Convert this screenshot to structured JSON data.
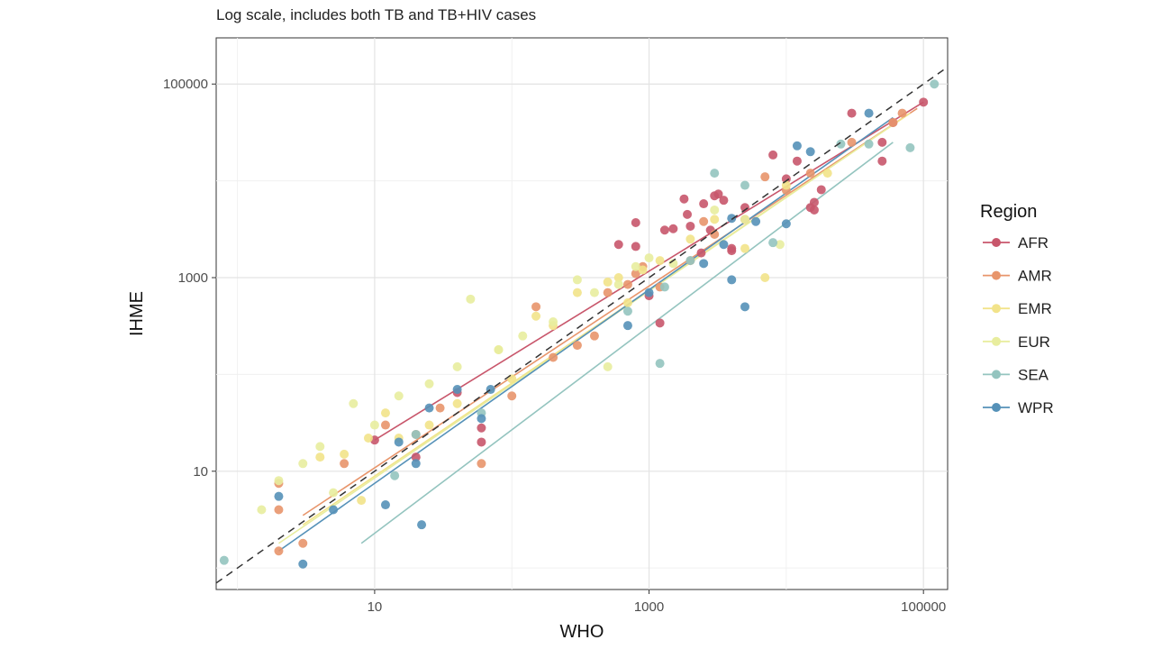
{
  "chart_data": {
    "type": "scatter",
    "subtitle": "Log scale, includes both TB and TB+HIV cases",
    "xlabel": "WHO",
    "ylabel": "IHME",
    "x_scale": "log10",
    "y_scale": "log10",
    "xlim": [
      0.7,
      150000
    ],
    "ylim": [
      0.6,
      300000
    ],
    "x_ticks": [
      10,
      1000,
      100000
    ],
    "x_tick_labels": [
      "10",
      "1000",
      "100000"
    ],
    "y_ticks": [
      10,
      1000,
      100000
    ],
    "y_tick_labels": [
      "10",
      "1000",
      "100000"
    ],
    "grid": true,
    "reference_line": "y = x (dashed)",
    "legend": {
      "title": "Region",
      "placement": "right",
      "entries": [
        "AFR",
        "AMR",
        "EMR",
        "EUR",
        "SEA",
        "WPR"
      ]
    },
    "series": [
      {
        "name": "AFR",
        "color": "#c8566b",
        "fit": [
          [
            10,
            21
          ],
          [
            100000,
            65000
          ]
        ],
        "points": [
          [
            10,
            21
          ],
          [
            20,
            14
          ],
          [
            40,
            65
          ],
          [
            60,
            28
          ],
          [
            60,
            20
          ],
          [
            800,
            2100
          ],
          [
            800,
            3700
          ],
          [
            600,
            2200
          ],
          [
            1000,
            650
          ],
          [
            1200,
            340
          ],
          [
            1300,
            3100
          ],
          [
            1500,
            3200
          ],
          [
            1800,
            6500
          ],
          [
            1900,
            4500
          ],
          [
            2000,
            3400
          ],
          [
            2400,
            1800
          ],
          [
            2500,
            5800
          ],
          [
            2800,
            3100
          ],
          [
            3000,
            7000
          ],
          [
            3200,
            7300
          ],
          [
            3500,
            6300
          ],
          [
            4000,
            2000
          ],
          [
            4000,
            1900
          ],
          [
            5000,
            5300
          ],
          [
            8000,
            18500
          ],
          [
            10000,
            10500
          ],
          [
            12000,
            16000
          ],
          [
            15000,
            5300
          ],
          [
            16000,
            6000
          ],
          [
            16000,
            5000
          ],
          [
            18000,
            8100
          ],
          [
            30000,
            50000
          ],
          [
            50000,
            25000
          ],
          [
            50000,
            16000
          ],
          [
            60000,
            40000
          ],
          [
            100000,
            65000
          ]
        ]
      },
      {
        "name": "AMR",
        "color": "#e8956b",
        "fit": [
          [
            3,
            3.5
          ],
          [
            90000,
            56000
          ]
        ],
        "points": [
          [
            2,
            1.5
          ],
          [
            2,
            7.5
          ],
          [
            2,
            4
          ],
          [
            3,
            1.8
          ],
          [
            6,
            12
          ],
          [
            12,
            30
          ],
          [
            20,
            24
          ],
          [
            30,
            45
          ],
          [
            60,
            12
          ],
          [
            100,
            60
          ],
          [
            150,
            500
          ],
          [
            200,
            150
          ],
          [
            300,
            200
          ],
          [
            400,
            250
          ],
          [
            500,
            700
          ],
          [
            700,
            850
          ],
          [
            800,
            1100
          ],
          [
            900,
            1300
          ],
          [
            1200,
            800
          ],
          [
            2000,
            1500
          ],
          [
            2500,
            3800
          ],
          [
            3000,
            2800
          ],
          [
            5000,
            4000
          ],
          [
            7000,
            11000
          ],
          [
            10000,
            8000
          ],
          [
            15000,
            12000
          ],
          [
            30000,
            25000
          ],
          [
            60000,
            40000
          ],
          [
            70000,
            50000
          ]
        ]
      },
      {
        "name": "EMR",
        "color": "#f2e38a",
        "fit": [
          [
            3,
            2.8
          ],
          [
            80000,
            50000
          ]
        ],
        "points": [
          [
            4,
            14
          ],
          [
            6,
            15
          ],
          [
            8,
            5
          ],
          [
            9,
            22
          ],
          [
            12,
            40
          ],
          [
            15,
            22
          ],
          [
            25,
            30
          ],
          [
            40,
            50
          ],
          [
            80,
            180
          ],
          [
            100,
            90
          ],
          [
            150,
            400
          ],
          [
            200,
            320
          ],
          [
            300,
            700
          ],
          [
            500,
            900
          ],
          [
            600,
            1000
          ],
          [
            700,
            550
          ],
          [
            900,
            1200
          ],
          [
            1200,
            1500
          ],
          [
            2000,
            2500
          ],
          [
            3000,
            4000
          ],
          [
            5000,
            2000
          ],
          [
            7000,
            1000
          ],
          [
            10000,
            9000
          ],
          [
            20000,
            12000
          ]
        ]
      },
      {
        "name": "EUR",
        "color": "#e8ed9e",
        "fit": [
          [
            2,
            1.8
          ],
          [
            60000,
            38000
          ]
        ],
        "points": [
          [
            1.5,
            4
          ],
          [
            2,
            8
          ],
          [
            3,
            12
          ],
          [
            4,
            18
          ],
          [
            5,
            6
          ],
          [
            7,
            50
          ],
          [
            10,
            30
          ],
          [
            15,
            60
          ],
          [
            25,
            80
          ],
          [
            40,
            120
          ],
          [
            50,
            600
          ],
          [
            80,
            180
          ],
          [
            120,
            250
          ],
          [
            200,
            350
          ],
          [
            300,
            950
          ],
          [
            400,
            700
          ],
          [
            500,
            120
          ],
          [
            600,
            850
          ],
          [
            800,
            1300
          ],
          [
            1000,
            1600
          ],
          [
            1500,
            1400
          ],
          [
            3000,
            5000
          ],
          [
            5000,
            4000
          ],
          [
            9000,
            2200
          ]
        ]
      },
      {
        "name": "SEA",
        "color": "#94c4bf",
        "fit": [
          [
            8,
            1.8
          ],
          [
            60000,
            25000
          ]
        ],
        "points": [
          [
            0.8,
            1.2
          ],
          [
            14,
            9
          ],
          [
            20,
            24
          ],
          [
            60,
            40
          ],
          [
            700,
            450
          ],
          [
            1200,
            130
          ],
          [
            1300,
            800
          ],
          [
            2000,
            1500
          ],
          [
            3000,
            12000
          ],
          [
            5000,
            9000
          ],
          [
            8000,
            2300
          ],
          [
            25000,
            24000
          ],
          [
            40000,
            24000
          ],
          [
            80000,
            22000
          ],
          [
            120000,
            100000
          ]
        ]
      },
      {
        "name": "WPR",
        "color": "#5591b8",
        "fit": [
          [
            2,
            1.5
          ],
          [
            60000,
            45000
          ]
        ],
        "points": [
          [
            2,
            5.5
          ],
          [
            3,
            1.1
          ],
          [
            5,
            4
          ],
          [
            12,
            4.5
          ],
          [
            15,
            20
          ],
          [
            20,
            12
          ],
          [
            22,
            2.8
          ],
          [
            25,
            45
          ],
          [
            40,
            70
          ],
          [
            60,
            35
          ],
          [
            70,
            70
          ],
          [
            700,
            320
          ],
          [
            1000,
            700
          ],
          [
            2500,
            1400
          ],
          [
            3500,
            2200
          ],
          [
            4000,
            4100
          ],
          [
            4000,
            950
          ],
          [
            5000,
            500
          ],
          [
            6000,
            3800
          ],
          [
            10000,
            3600
          ],
          [
            12000,
            23000
          ],
          [
            15000,
            20000
          ],
          [
            40000,
            50000
          ]
        ]
      }
    ]
  }
}
